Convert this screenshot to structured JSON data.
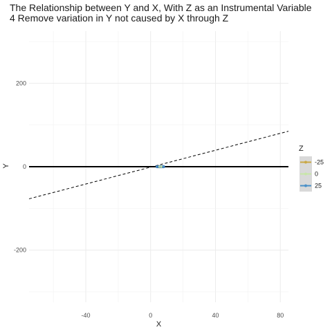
{
  "chart_data": {
    "type": "scatter",
    "title": "The Relationship between Y and X, With Z as an Instrumental Variable",
    "subtitle": "4 Remove variation in Y not caused by X through Z",
    "xlabel": "X",
    "ylabel": "Y",
    "xlim": [
      -75,
      85
    ],
    "ylim": [
      -325,
      325
    ],
    "x_ticks": [
      -40,
      0,
      40,
      80
    ],
    "y_ticks": [
      -200,
      0,
      200
    ],
    "grid": true,
    "legend": {
      "title": "Z",
      "position": "right",
      "entries": [
        {
          "label": "-25",
          "color": "#c9a845"
        },
        {
          "label": "0",
          "color": "#c7e6a8"
        },
        {
          "label": "25",
          "color": "#4a90c8"
        }
      ]
    },
    "points": [
      {
        "x": 4,
        "y": 0,
        "z": 25
      },
      {
        "x": 5,
        "y": 0,
        "z": 25
      },
      {
        "x": 6,
        "y": 0,
        "z": 25
      },
      {
        "x": 7,
        "y": 0,
        "z": 25
      },
      {
        "x": 8,
        "y": 0,
        "z": 25
      },
      {
        "x": 5.5,
        "y": 0,
        "z": 0
      },
      {
        "x": 6.5,
        "y": 0,
        "z": 0
      }
    ],
    "lines": [
      {
        "style": "solid",
        "color": "#000000",
        "x": [
          -75,
          85
        ],
        "y": [
          0,
          0
        ]
      },
      {
        "style": "dashed",
        "color": "#000000",
        "x": [
          -75,
          85
        ],
        "y": [
          -77,
          85
        ]
      }
    ]
  }
}
